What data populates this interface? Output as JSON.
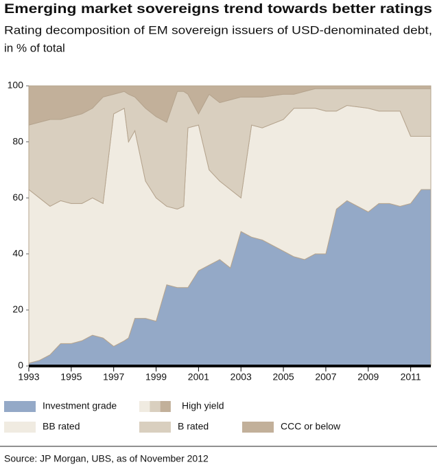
{
  "chart_data": {
    "type": "stacked_area",
    "title": "Emerging market sovereigns trend towards better ratings",
    "subtitle": [
      "Rating decomposition of EM sovereign issuers of USD-denominated debt,",
      "in % of total"
    ],
    "x": [
      1993.0,
      1993.5,
      1994.0,
      1994.5,
      1995.0,
      1995.5,
      1996.0,
      1996.5,
      1997.0,
      1997.5,
      1997.7,
      1998.0,
      1998.5,
      1999.0,
      1999.5,
      2000.0,
      2000.3,
      2000.5,
      2001.0,
      2001.5,
      2002.0,
      2002.5,
      2003.0,
      2003.5,
      2004.0,
      2005.0,
      2005.5,
      2006.0,
      2006.5,
      2007.0,
      2007.5,
      2008.0,
      2009.0,
      2009.5,
      2010.0,
      2010.5,
      2011.0,
      2011.5,
      2011.95
    ],
    "series": [
      {
        "name": "Investment grade",
        "color": "#94a9c7",
        "values": [
          1,
          2,
          4,
          8,
          8,
          9,
          11,
          10,
          7,
          9,
          10,
          17,
          17,
          16,
          29,
          28,
          28,
          28,
          34,
          36,
          38,
          35,
          48,
          46,
          45,
          41,
          39,
          38,
          40,
          40,
          56,
          59,
          55,
          58,
          58,
          57,
          58,
          63,
          63
        ]
      },
      {
        "name": "BB rated",
        "color": "#f0ebe1",
        "values": [
          62,
          58,
          53,
          51,
          50,
          49,
          49,
          48,
          83,
          83,
          70,
          67,
          49,
          44,
          28,
          28,
          29,
          57,
          52,
          34,
          28,
          28,
          12,
          40,
          40,
          47,
          53,
          54,
          52,
          51,
          35,
          34,
          37,
          33,
          33,
          34,
          24,
          19,
          19
        ]
      },
      {
        "name": "B rated",
        "color": "#d9cfbf",
        "values": [
          23,
          27,
          31,
          29,
          31,
          32,
          32,
          38,
          7,
          6,
          17,
          12,
          26,
          29,
          30,
          42,
          41,
          12,
          4,
          27,
          28,
          32,
          36,
          10,
          11,
          9,
          5,
          6,
          7,
          8,
          8,
          6,
          7,
          8,
          8,
          8,
          17,
          17,
          17
        ]
      },
      {
        "name": "CCC or below",
        "color": "#c2b09a",
        "values": [
          14,
          13,
          12,
          12,
          11,
          10,
          8,
          4,
          3,
          2,
          3,
          4,
          8,
          11,
          13,
          2,
          2,
          3,
          10,
          3,
          6,
          5,
          4,
          4,
          4,
          3,
          3,
          2,
          1,
          1,
          1,
          1,
          1,
          1,
          1,
          1,
          1,
          1,
          1
        ]
      }
    ],
    "legend_group": {
      "name": "High yield"
    },
    "xlim": [
      1993,
      2011.95
    ],
    "xticks": [
      1993,
      1995,
      1997,
      1999,
      2001,
      2003,
      2005,
      2007,
      2009,
      2011
    ],
    "ylim": [
      0,
      100
    ],
    "yticks": [
      0,
      20,
      40,
      60,
      80,
      100
    ],
    "source": "Source: JP Morgan, UBS,  as of November 2012"
  }
}
